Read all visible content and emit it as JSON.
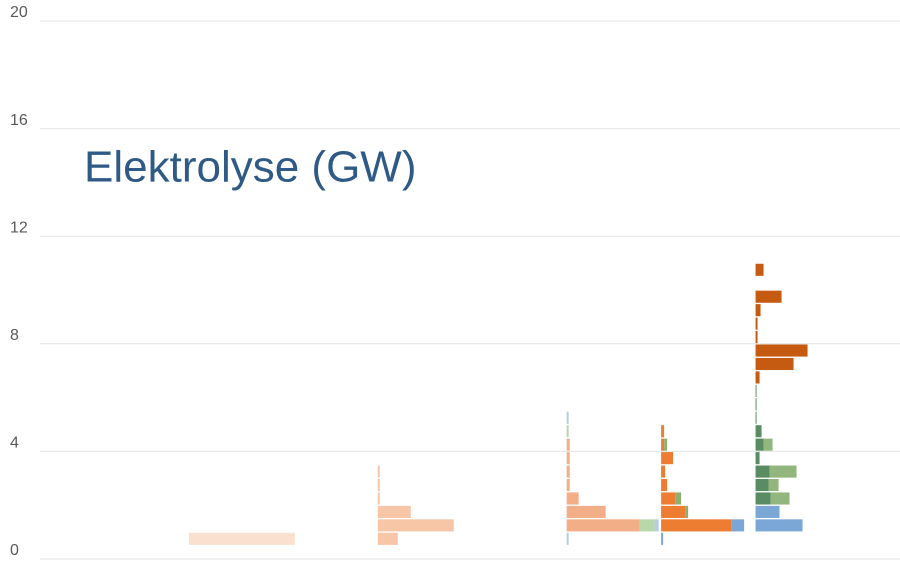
{
  "chart_data": {
    "type": "strip-histogram",
    "title": "Elektrolyse (GW)",
    "ylim": [
      0,
      20
    ],
    "yticks": [
      0,
      4,
      8,
      12,
      16,
      20
    ],
    "grid": true,
    "bins": [
      0,
      0.5,
      1,
      1.5,
      2,
      2.5,
      3,
      3.5,
      4,
      4.5,
      5,
      5.5,
      6,
      6.5,
      7,
      7.5,
      8,
      8.5,
      9,
      9.5,
      10,
      10.5,
      11
    ],
    "categories": [
      null,
      null,
      null,
      null,
      null,
      null,
      null,
      null,
      null
    ],
    "series": [
      {
        "color": "#fae0cf",
        "values": [
          null,
          null,
          [
            0,
            10.6,
            0,
            0,
            0,
            0,
            0,
            0,
            0,
            0,
            0,
            0,
            0,
            0,
            0,
            0,
            0,
            0,
            0,
            0,
            0,
            0
          ],
          null,
          null,
          null,
          null,
          null,
          null
        ]
      },
      {
        "color": "#f6c6a6",
        "values": [
          null,
          null,
          null,
          null,
          [
            0,
            2,
            7.6,
            3.3,
            0.2,
            0.2,
            0.2,
            0,
            0,
            0,
            0,
            0,
            0,
            0,
            0,
            0,
            0,
            0,
            0,
            0,
            0,
            0
          ],
          null,
          null,
          null,
          null
        ]
      },
      {
        "color": "#f2ae86",
        "values": [
          null,
          null,
          null,
          null,
          null,
          null,
          [
            0,
            0,
            7.3,
            3.9,
            1.2,
            0.3,
            0.3,
            0.3,
            0.3,
            0,
            0,
            0,
            0,
            0,
            0,
            0,
            0,
            0,
            0,
            0,
            0,
            0
          ],
          null,
          null
        ]
      },
      {
        "color": "#ed7d31",
        "values": [
          null,
          null,
          null,
          null,
          null,
          null,
          null,
          [
            0,
            0,
            7,
            2.4,
            1.4,
            0.6,
            0.4,
            1.2,
            0.3,
            0.3,
            0,
            0,
            0,
            0,
            0,
            0,
            0,
            0,
            0,
            0,
            0,
            0
          ],
          null
        ]
      },
      {
        "color": "#c55a11",
        "values": [
          null,
          null,
          null,
          null,
          null,
          null,
          null,
          null,
          [
            0,
            0,
            0,
            0,
            0,
            0,
            0,
            0,
            0,
            0,
            0,
            0,
            0,
            0.4,
            3.8,
            5.2,
            0.2,
            0.2,
            0.5,
            2.6,
            0,
            0.8
          ]
        ]
      },
      {
        "color": "#b8d7ab",
        "values": [
          null,
          null,
          null,
          null,
          null,
          null,
          [
            0,
            0,
            1.5,
            0,
            0,
            0,
            0,
            0,
            0,
            0.2,
            0,
            0,
            0,
            0,
            0,
            0,
            0,
            0,
            0,
            0,
            0,
            0
          ],
          null,
          null
        ]
      },
      {
        "color": "#b4cde6",
        "values": [
          null,
          null,
          null,
          null,
          null,
          null,
          [
            0,
            0.2,
            0.4,
            0,
            0,
            0,
            0,
            0,
            0,
            0,
            0.2,
            0,
            0,
            0,
            0,
            0,
            0,
            0,
            0,
            0,
            0,
            0
          ],
          null,
          null
        ]
      },
      {
        "color": "#8db071",
        "values": [
          null,
          null,
          null,
          null,
          null,
          null,
          null,
          [
            0,
            0,
            0,
            0.3,
            0.6,
            0,
            0,
            0,
            0.3,
            0,
            0,
            0,
            0,
            0,
            0,
            0,
            0,
            0,
            0,
            0,
            0,
            0
          ],
          null
        ]
      },
      {
        "color": "#7ba7d6",
        "values": [
          null,
          null,
          null,
          null,
          null,
          null,
          null,
          [
            0,
            0.2,
            1.3,
            0,
            0,
            0,
            0,
            0,
            0,
            0,
            0,
            0,
            0,
            0,
            0,
            0,
            0,
            0,
            0,
            0,
            0,
            0
          ],
          [
            0,
            0,
            4.7,
            2.4,
            0,
            0,
            0,
            0,
            0,
            0,
            0,
            0,
            0,
            0,
            0,
            0,
            0,
            0,
            0,
            0,
            0,
            0
          ]
        ]
      },
      {
        "color": "#5a8c64",
        "values": [
          null,
          null,
          null,
          null,
          null,
          null,
          null,
          null,
          [
            0,
            0,
            0,
            0,
            1.5,
            1.3,
            1.4,
            0.4,
            0.8,
            0.6,
            0.1,
            0.1,
            0.1,
            0,
            0,
            0,
            0,
            0,
            0,
            0,
            0,
            0
          ]
        ]
      },
      {
        "color": "#93b67e",
        "values": [
          null,
          null,
          null,
          null,
          null,
          null,
          null,
          null,
          [
            0,
            0,
            0,
            0,
            1.9,
            1,
            2.7,
            0,
            0.9,
            0,
            0,
            0,
            0,
            0,
            0,
            0,
            0,
            0,
            0,
            0,
            0,
            0
          ]
        ]
      }
    ]
  }
}
